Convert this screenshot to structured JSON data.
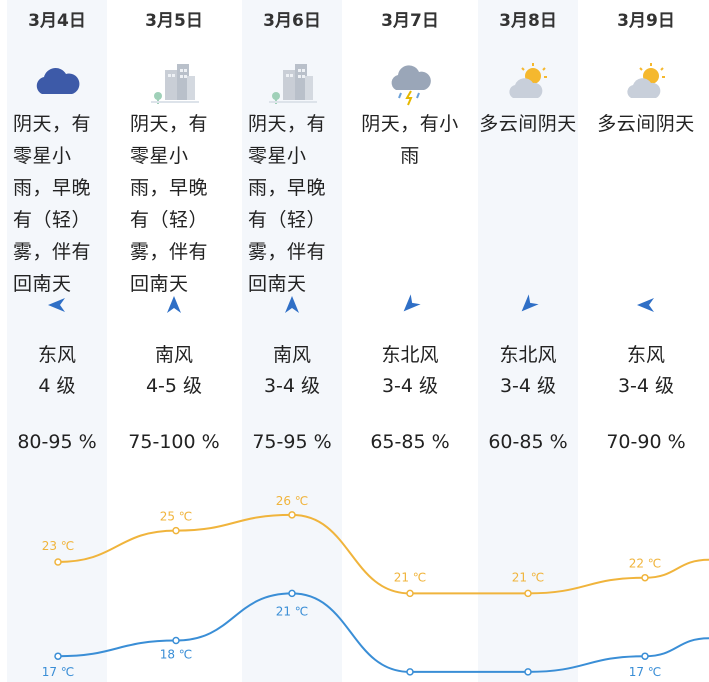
{
  "days": [
    {
      "date": "3月4日",
      "icon": "overcast-cloud-icon",
      "desc": "阴天，有零星小雨，早晚有（轻）雾，伴有回南天",
      "wind_dir": "东风",
      "wind_level": "4 级",
      "humidity": "80-95 %",
      "arrow": "arrow-left-icon",
      "high": "23 ℃",
      "low": "17 ℃"
    },
    {
      "date": "3月5日",
      "icon": "fog-buildings-icon",
      "desc": "阴天，有零星小雨，早晚有（轻）雾，伴有回南天",
      "wind_dir": "南风",
      "wind_level": "4-5 级",
      "humidity": "75-100 %",
      "arrow": "arrow-up-icon",
      "high": "25 ℃",
      "low": "18 ℃"
    },
    {
      "date": "3月6日",
      "icon": "fog-buildings-icon",
      "desc": "阴天，有零星小雨，早晚有（轻）雾，伴有回南天",
      "wind_dir": "南风",
      "wind_level": "3-4 级",
      "humidity": "75-95 %",
      "arrow": "arrow-up-icon",
      "high": "26 ℃",
      "low": "21 ℃"
    },
    {
      "date": "3月7日",
      "icon": "rain-cloud-icon",
      "desc": "阴天，有小雨",
      "wind_dir": "东北风",
      "wind_level": "3-4 级",
      "humidity": "65-85 %",
      "arrow": "arrow-down-left-icon",
      "high": "21 ℃",
      "low": "16 ℃"
    },
    {
      "date": "3月8日",
      "icon": "partly-cloudy-sun-icon",
      "desc": "多云间阴天",
      "wind_dir": "东北风",
      "wind_level": "3-4 级",
      "humidity": "60-85 %",
      "arrow": "arrow-down-left-icon",
      "high": "21 ℃",
      "low": "16 ℃"
    },
    {
      "date": "3月9日",
      "icon": "partly-cloudy-sun-icon",
      "desc": "多云间阴天",
      "wind_dir": "东风",
      "wind_level": "3-4 级",
      "humidity": "70-90 %",
      "arrow": "arrow-left-icon",
      "high": "22 ℃",
      "low": "17 ℃"
    }
  ],
  "chart_data": {
    "type": "line",
    "categories": [
      "3月4日",
      "3月5日",
      "3月6日",
      "3月7日",
      "3月8日",
      "3月9日"
    ],
    "series": [
      {
        "values": [
          23,
          25,
          26,
          21,
          21,
          22
        ],
        "color": "#f0b43c"
      },
      {
        "values": [
          17,
          18,
          21,
          16,
          16,
          17
        ],
        "color": "#3a8ed6"
      }
    ]
  }
}
